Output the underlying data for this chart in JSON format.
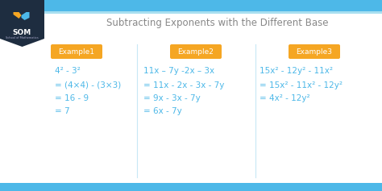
{
  "title": "Subtracting Exponents with the Different Base",
  "title_color": "#888888",
  "title_fontsize": 8.5,
  "bg_color": "#ffffff",
  "header_color_light": "#a8dff0",
  "header_color_dark": "#4db8e8",
  "logo_bg": "#1e2d40",
  "label_bg": "#f5a623",
  "label_text_color": "#ffffff",
  "label_fontsize": 6.5,
  "math_color": "#4db8e8",
  "math_fontsize": 7.5,
  "divider_color": "#c8e8f5",
  "examples": [
    "Example1",
    "Example2",
    "Example3"
  ],
  "ex1_lines": [
    "4² - 3²",
    "= (4×4) - (3×3)",
    "= 16 - 9",
    "= 7"
  ],
  "ex2_lines": [
    "11x – 7y -2x – 3x",
    "= 11x - 2x - 3x - 7y",
    "= 9x - 3x - 7y",
    "= 6x - 7y"
  ],
  "ex3_lines": [
    "15x² - 12y² - 11x²",
    "= 15x² - 11x² - 12y²",
    "= 4x² - 12y²"
  ]
}
